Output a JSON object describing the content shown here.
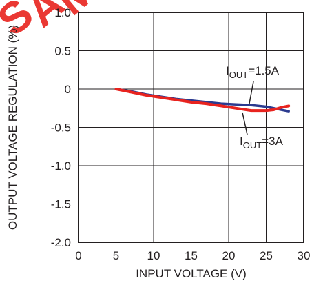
{
  "chart_data": {
    "type": "line",
    "xlabel": "INPUT VOLTAGE (V)",
    "ylabel": "OUTPUT VOLTAGE REGULATION (%)",
    "xlim": [
      0,
      30
    ],
    "ylim": [
      -2.0,
      1.0
    ],
    "x_ticks": [
      "0",
      "5",
      "10",
      "15",
      "20",
      "25",
      "30"
    ],
    "y_ticks": [
      "1.0",
      "0.5",
      "0",
      "-0.5",
      "-1.0",
      "-1.5",
      "-2.0"
    ],
    "grid": true,
    "series": [
      {
        "name": "I_OUT=1.5A",
        "color": "#2b3a8f",
        "x": [
          5,
          7,
          9,
          11,
          13,
          15,
          17,
          19,
          21,
          23,
          25,
          27,
          28
        ],
        "y": [
          0,
          -0.03,
          -0.07,
          -0.1,
          -0.13,
          -0.15,
          -0.17,
          -0.19,
          -0.2,
          -0.21,
          -0.23,
          -0.27,
          -0.29
        ]
      },
      {
        "name": "I_OUT=3A",
        "color": "#e8231e",
        "x": [
          5,
          7,
          9,
          11,
          13,
          15,
          17,
          19,
          21,
          23,
          25,
          26,
          27,
          28
        ],
        "y": [
          0,
          -0.04,
          -0.08,
          -0.11,
          -0.14,
          -0.17,
          -0.19,
          -0.22,
          -0.25,
          -0.28,
          -0.28,
          -0.27,
          -0.24,
          -0.22
        ]
      }
    ],
    "annotations": [
      {
        "main": "I",
        "sub": "OUT",
        "rest": "=1.5A"
      },
      {
        "main": "I",
        "sub": "OUT",
        "rest": "=3A"
      }
    ]
  },
  "watermark": {
    "text": "SAMPLE",
    "color": "#e8231e"
  }
}
